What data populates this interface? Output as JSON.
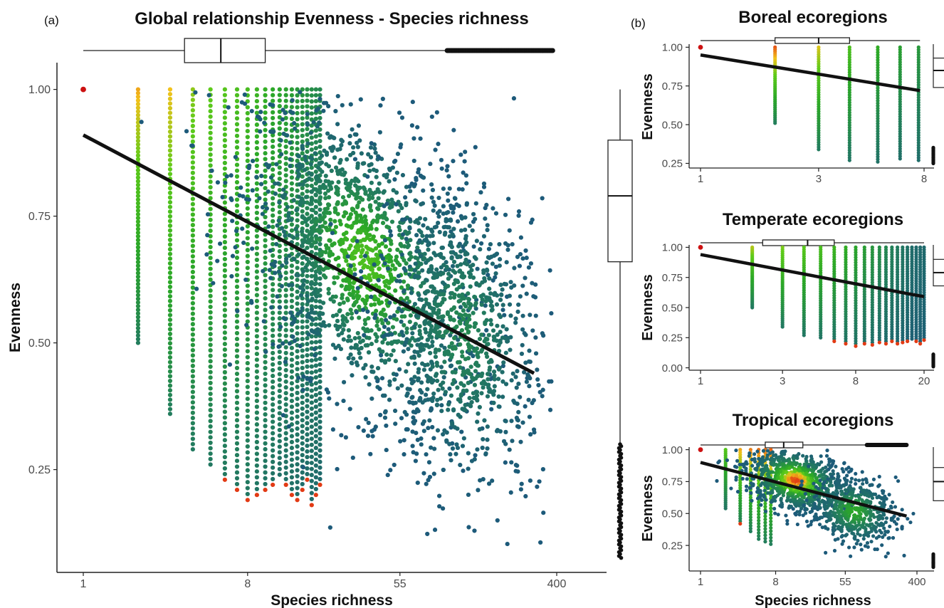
{
  "panels": {
    "a": {
      "label": "(a)"
    },
    "b": {
      "label": "(b)"
    }
  },
  "chart_data": [
    {
      "id": "global",
      "type": "scatter",
      "title": "Global relationship Evenness - Species richness",
      "xlabel": "Species richness",
      "ylabel": "Evenness",
      "x_scale": "log",
      "xlim": [
        1,
        400
      ],
      "ylim": [
        0.05,
        1.05
      ],
      "xticks": [
        1,
        8,
        55,
        400
      ],
      "yticks": [
        0.25,
        0.5,
        0.75,
        1.0
      ],
      "ytick_labels": [
        "0.25",
        "0.50",
        "0.75",
        "1.00"
      ],
      "grid": false,
      "legend": "none",
      "fit_line": {
        "x": [
          1,
          300
        ],
        "y": [
          0.91,
          0.44
        ]
      },
      "x_boxplot": {
        "q1": 3.6,
        "median": 5.7,
        "q3": 10,
        "whisker_low": 1,
        "outliers_from": 100,
        "outliers_to": 380
      },
      "y_boxplot": {
        "q1": 0.66,
        "median": 0.79,
        "q3": 0.9,
        "whisker_high": 1.0,
        "whisker_low": 0.3
      },
      "single_species_point": {
        "x": 1,
        "y": 1.0
      }
    },
    {
      "id": "boreal",
      "type": "scatter",
      "title": "Boreal ecoregions",
      "xlabel": "",
      "ylabel": "Evenness",
      "x_scale": "log",
      "xlim": [
        1,
        8
      ],
      "ylim": [
        0.22,
        1.02
      ],
      "xticks": [
        1,
        3,
        8
      ],
      "yticks": [
        0.25,
        0.5,
        0.75,
        1.0
      ],
      "ytick_labels": [
        "0.25",
        "0.50",
        "0.75",
        "1.00"
      ],
      "grid": false,
      "legend": "none",
      "fit_line": {
        "x": [
          1,
          7.7
        ],
        "y": [
          0.95,
          0.72
        ]
      },
      "x_boxplot": {
        "q1": 2,
        "median": 3,
        "q3": 4,
        "whisker_low": 1,
        "whisker_high": 7.7
      },
      "single_species_point": {
        "x": 1,
        "y": 1.0
      }
    },
    {
      "id": "temperate",
      "type": "scatter",
      "title": "Temperate ecoregions",
      "xlabel": "",
      "ylabel": "Evenness",
      "x_scale": "log",
      "xlim": [
        1,
        20
      ],
      "ylim": [
        -0.02,
        1.02
      ],
      "xticks": [
        1,
        3,
        8,
        20
      ],
      "yticks": [
        0.0,
        0.25,
        0.5,
        0.75,
        1.0
      ],
      "ytick_labels": [
        "0.00",
        "0.25",
        "0.50",
        "0.75",
        "1.00"
      ],
      "grid": false,
      "legend": "none",
      "fit_line": {
        "x": [
          1,
          20
        ],
        "y": [
          0.94,
          0.59
        ]
      },
      "x_boxplot": {
        "q1": 2.3,
        "median": 4.2,
        "q3": 6,
        "whisker_low": 1,
        "whisker_high": 20
      },
      "single_species_point": {
        "x": 1,
        "y": 1.0
      }
    },
    {
      "id": "tropical",
      "type": "scatter",
      "title": "Tropical ecoregions",
      "xlabel": "Species richness",
      "ylabel": "Evenness",
      "x_scale": "log",
      "xlim": [
        1,
        400
      ],
      "ylim": [
        0.05,
        1.02
      ],
      "xticks": [
        1,
        8,
        55,
        400
      ],
      "yticks": [
        0.25,
        0.5,
        0.75,
        1.0
      ],
      "ytick_labels": [
        "0.25",
        "0.50",
        "0.75",
        "1.00"
      ],
      "grid": false,
      "legend": "none",
      "fit_line": {
        "x": [
          1,
          300
        ],
        "y": [
          0.9,
          0.48
        ]
      },
      "x_boxplot": {
        "q1": 6,
        "median": 10,
        "q3": 17,
        "whisker_low": 1,
        "outliers_from": 100,
        "outliers_to": 300
      },
      "single_species_point": {
        "x": 1,
        "y": 1.0
      }
    }
  ],
  "colors": {
    "low_density": "#1d5a7a",
    "mid_density": "#2a9a2a",
    "high_density_green": "#5ecb1a",
    "high_density_yellow": "#f2c21b",
    "high_density_red": "#e23a14",
    "single_point": "#cc1111",
    "fit_line": "#111111"
  }
}
